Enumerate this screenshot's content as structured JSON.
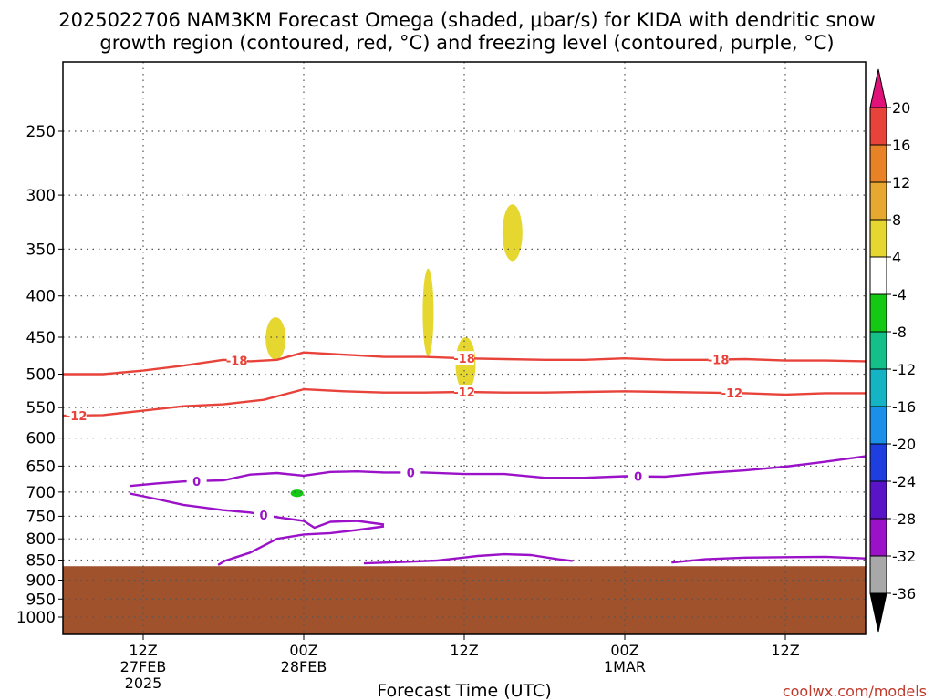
{
  "title_line1": "2025022706 NAM3KM Forecast Omega (shaded, μbar/s) for KIDA with dendritic snow",
  "title_line2": "growth region (contoured, red, °C) and freezing level (contoured, purple, °C)",
  "credit": "coolwx.com/models",
  "chart_data": {
    "type": "heatmap",
    "title": "2025022706 NAM3KM Forecast Omega (shaded, μbar/s) for KIDA with dendritic snow growth region (contoured, red, °C) and freezing level (contoured, purple, °C)",
    "xlabel": "Forecast Time (UTC)",
    "ylabel": "",
    "x_unit": "forecast hours from 2025-02-27 06Z",
    "xlim": [
      0,
      60
    ],
    "y_unit": "mb",
    "ylim": [
      1000,
      200
    ],
    "y_scale": "log",
    "y_ticks": [
      250,
      300,
      350,
      400,
      450,
      500,
      550,
      600,
      650,
      700,
      750,
      800,
      850,
      900,
      950,
      1000
    ],
    "x_ticks": [
      {
        "hour": 6,
        "label": "12Z",
        "sub1": "27FEB",
        "sub2": "2025"
      },
      {
        "hour": 18,
        "label": "00Z",
        "sub1": "28FEB",
        "sub2": ""
      },
      {
        "hour": 30,
        "label": "12Z",
        "sub1": "",
        "sub2": ""
      },
      {
        "hour": 42,
        "label": "00Z",
        "sub1": "1MAR",
        "sub2": ""
      },
      {
        "hour": 54,
        "label": "12Z",
        "sub1": "",
        "sub2": ""
      }
    ],
    "grid": true,
    "colorbar": {
      "levels": [
        "-36",
        "-32",
        "-28",
        "-24",
        "-20",
        "-16",
        "-12",
        "-8",
        "-4",
        "4",
        "8",
        "12",
        "16",
        "20"
      ],
      "colors": [
        "#000000",
        "#a8a8a8",
        "#9a11c8",
        "#5a14c8",
        "#1e3ee0",
        "#1a90e8",
        "#14b4c4",
        "#14c088",
        "#14c814",
        "#ffffff",
        "#e6d630",
        "#e6a830",
        "#e88226",
        "#e8433a",
        "#e0127a"
      ]
    },
    "terrain": {
      "pressure_top_mb": 865,
      "color": "#a0522d"
    },
    "shaded_regions": [
      {
        "value_class": "4 to 8",
        "color": "#e6d630",
        "center_hour": 15.9,
        "pressure_min": 425,
        "pressure_max": 480
      },
      {
        "value_class": "4 to 8",
        "color": "#e6d630",
        "center_hour": 27.3,
        "pressure_min": 370,
        "pressure_max": 475
      },
      {
        "value_class": "4 to 8",
        "color": "#e6d630",
        "center_hour": 30.1,
        "pressure_min": 450,
        "pressure_max": 525
      },
      {
        "value_class": "4 to 8",
        "color": "#e6d630",
        "center_hour": 33.6,
        "pressure_min": 308,
        "pressure_max": 362
      },
      {
        "value_class": "-8 to -4",
        "color": "#14c814",
        "center_hour": 17.5,
        "pressure_min": 695,
        "pressure_max": 710
      }
    ],
    "series": [
      {
        "name": "-18",
        "color": "#e8433a",
        "hours": [
          0,
          3,
          6,
          9,
          12,
          14,
          16,
          18,
          20,
          24,
          27,
          30,
          33,
          36,
          39,
          42,
          45,
          48,
          51,
          54,
          57,
          60
        ],
        "pressure": [
          500,
          500,
          495,
          488,
          480,
          482,
          480,
          470,
          472,
          476,
          476,
          478,
          479,
          480,
          480,
          478,
          480,
          480,
          479,
          481,
          481,
          482
        ],
        "labels_at_hours": [
          13,
          30,
          49
        ]
      },
      {
        "name": "-12",
        "color": "#e8433a",
        "hours": [
          0,
          3,
          6,
          9,
          12,
          15,
          18,
          21,
          24,
          27,
          30,
          33,
          36,
          39,
          42,
          45,
          48,
          51,
          54,
          57,
          60
        ],
        "pressure": [
          563,
          562,
          555,
          548,
          545,
          538,
          522,
          525,
          527,
          527,
          526,
          527,
          527,
          526,
          525,
          526,
          527,
          528,
          530,
          528,
          528
        ],
        "labels_at_hours": [
          1,
          30,
          50
        ]
      },
      {
        "name": "0",
        "color": "#9a11c8",
        "hours": [
          5.0,
          7,
          9,
          12,
          14,
          16,
          18,
          20,
          22,
          24,
          27,
          30,
          33,
          36,
          39,
          42,
          45,
          48,
          51,
          54,
          57,
          60
        ],
        "pressure": [
          688,
          683,
          679,
          677,
          666,
          663,
          668,
          661,
          660,
          662,
          662,
          665,
          665,
          672,
          672,
          669,
          670,
          663,
          658,
          651,
          642,
          632
        ],
        "labels_at_hours": [
          10,
          26,
          43
        ]
      },
      {
        "name": "0",
        "color": "#9a11c8",
        "hours": [
          5.0,
          7,
          9,
          12,
          14,
          16,
          18,
          18.8,
          20,
          22,
          24
        ],
        "pressure": [
          703,
          714,
          726,
          737,
          742,
          752,
          760,
          775,
          762,
          760,
          768
        ],
        "labels_at_hours": [
          15
        ]
      },
      {
        "name": "0",
        "color": "#9a11c8",
        "hours": [
          11.6,
          12.1,
          14,
          16,
          18,
          20,
          22,
          24
        ],
        "pressure": [
          862,
          852,
          832,
          800,
          790,
          787,
          780,
          772
        ],
        "labels_at_hours": []
      },
      {
        "name": "0",
        "color": "#9a11c8",
        "hours": [
          22.5,
          25,
          28,
          31,
          33,
          35,
          37,
          38.1
        ],
        "pressure": [
          858,
          855,
          851,
          840,
          836,
          838,
          848,
          852
        ],
        "labels_at_hours": []
      },
      {
        "name": "0",
        "color": "#9a11c8",
        "hours": [
          45.5,
          48,
          51,
          54,
          57,
          60
        ],
        "pressure": [
          856,
          848,
          844,
          843,
          842,
          846
        ],
        "labels_at_hours": []
      }
    ]
  }
}
